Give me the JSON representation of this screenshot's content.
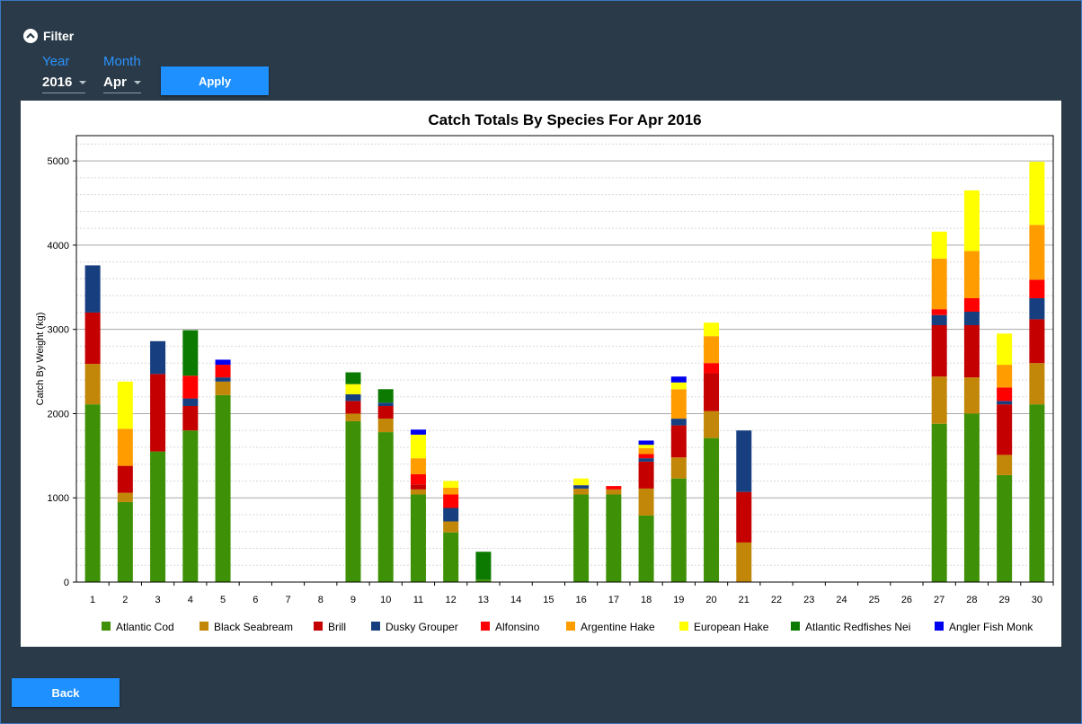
{
  "filter": {
    "label": "Filter"
  },
  "year": {
    "label": "Year",
    "value": "2016"
  },
  "month": {
    "label": "Month",
    "value": "Apr"
  },
  "apply_label": "Apply",
  "back_label": "Back",
  "chart_data": {
    "type": "bar",
    "stacked": true,
    "title": "Catch Totals By Species For Apr 2016",
    "xlabel": "",
    "ylabel": "Catch By Weight (kg)",
    "ylim": [
      0,
      5300
    ],
    "yticks": [
      0,
      1000,
      2000,
      3000,
      4000,
      5000
    ],
    "grid": true,
    "legend_position": "bottom",
    "categories": [
      "1",
      "2",
      "3",
      "4",
      "5",
      "6",
      "7",
      "8",
      "9",
      "10",
      "11",
      "12",
      "13",
      "14",
      "15",
      "16",
      "17",
      "18",
      "19",
      "20",
      "21",
      "22",
      "23",
      "24",
      "25",
      "26",
      "27",
      "28",
      "29",
      "30"
    ],
    "series": [
      {
        "name": "Atlantic Cod",
        "color": "#3e9106",
        "values": [
          2110,
          950,
          1550,
          1800,
          2220,
          0,
          0,
          0,
          1910,
          1780,
          1040,
          590,
          30,
          0,
          0,
          1040,
          1040,
          790,
          1230,
          1710,
          0,
          0,
          0,
          0,
          0,
          0,
          1880,
          2000,
          1270,
          2110
        ]
      },
      {
        "name": "Black Seabream",
        "color": "#c28708",
        "values": [
          480,
          110,
          0,
          0,
          160,
          0,
          0,
          0,
          90,
          160,
          60,
          130,
          0,
          0,
          0,
          70,
          60,
          320,
          250,
          320,
          470,
          0,
          0,
          0,
          0,
          0,
          560,
          430,
          240,
          490
        ]
      },
      {
        "name": "Brill",
        "color": "#c40000",
        "values": [
          610,
          320,
          920,
          290,
          0,
          0,
          0,
          0,
          150,
          150,
          60,
          0,
          0,
          0,
          0,
          0,
          0,
          320,
          380,
          450,
          600,
          0,
          0,
          0,
          0,
          0,
          610,
          620,
          600,
          520
        ]
      },
      {
        "name": "Dusky Grouper",
        "color": "#173f80",
        "values": [
          560,
          0,
          390,
          90,
          50,
          0,
          0,
          0,
          80,
          40,
          0,
          160,
          0,
          0,
          0,
          40,
          0,
          40,
          80,
          0,
          730,
          0,
          0,
          0,
          0,
          0,
          120,
          160,
          40,
          250
        ]
      },
      {
        "name": "Alfonsino",
        "color": "#ff0000",
        "values": [
          0,
          0,
          0,
          270,
          150,
          0,
          0,
          0,
          0,
          0,
          120,
          160,
          0,
          0,
          0,
          0,
          40,
          50,
          0,
          120,
          0,
          0,
          0,
          0,
          0,
          0,
          70,
          160,
          160,
          220
        ]
      },
      {
        "name": "Argentine Hake",
        "color": "#ff9d00",
        "values": [
          0,
          440,
          0,
          0,
          0,
          0,
          0,
          0,
          0,
          0,
          190,
          80,
          0,
          0,
          0,
          0,
          0,
          70,
          350,
          320,
          0,
          0,
          0,
          0,
          0,
          0,
          600,
          560,
          270,
          650
        ]
      },
      {
        "name": "European Hake",
        "color": "#ffff00",
        "values": [
          0,
          560,
          0,
          0,
          0,
          0,
          0,
          0,
          120,
          0,
          280,
          80,
          0,
          0,
          0,
          80,
          0,
          40,
          80,
          160,
          0,
          0,
          0,
          0,
          0,
          0,
          320,
          720,
          370,
          750
        ]
      },
      {
        "name": "Atlantic Redfishes Nei",
        "color": "#0c7a00",
        "values": [
          0,
          0,
          0,
          540,
          0,
          0,
          0,
          0,
          140,
          160,
          0,
          0,
          330,
          0,
          0,
          0,
          0,
          0,
          0,
          0,
          0,
          0,
          0,
          0,
          0,
          0,
          0,
          0,
          0,
          0
        ]
      },
      {
        "name": "Angler Fish Monk",
        "color": "#0000f0",
        "values": [
          0,
          0,
          0,
          0,
          60,
          0,
          0,
          0,
          0,
          0,
          60,
          0,
          0,
          0,
          0,
          0,
          0,
          50,
          70,
          0,
          0,
          0,
          0,
          0,
          0,
          0,
          0,
          0,
          0,
          0
        ]
      }
    ]
  }
}
